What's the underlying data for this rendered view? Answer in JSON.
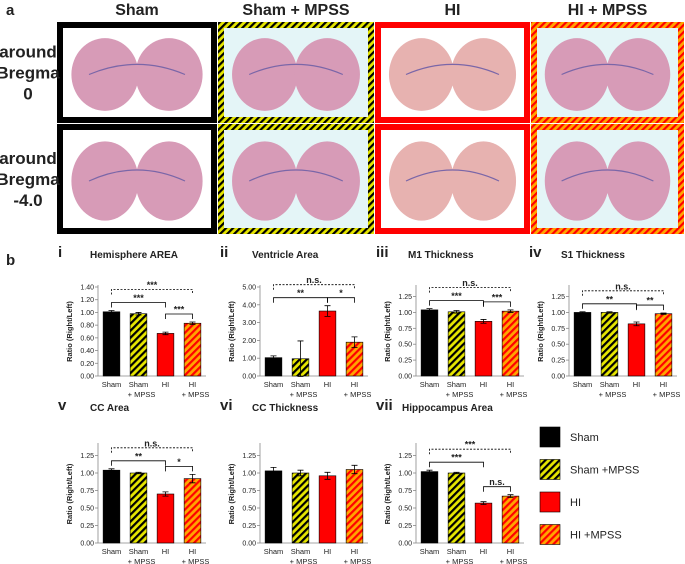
{
  "panel_a": {
    "label": "a",
    "columns": [
      "Sham",
      "Sham + MPSS",
      "HI",
      "HI + MPSS"
    ],
    "rows": [
      "around Bregma 0",
      "around Bregma -4.0"
    ]
  },
  "panel_b_label": "b",
  "bar_styles": [
    {
      "name": "Sham",
      "fill": "#000000"
    },
    {
      "name": "Sham +MPSS",
      "fill": "#e6e600",
      "stripe": "#000000"
    },
    {
      "name": "HI",
      "fill": "#ff0000"
    },
    {
      "name": "HI +MPSS",
      "fill": "#ffa500",
      "stripe": "#ff0000"
    }
  ],
  "chart_data": [
    {
      "type": "bar",
      "label": "i",
      "title": "Hemisphere AREA",
      "ylabel": "Ratio (Right/Left)",
      "categories": [
        "Sham",
        "Sham + MPSS",
        "HI",
        "HI + MPSS"
      ],
      "values": [
        1.01,
        0.98,
        0.67,
        0.83
      ],
      "errors": [
        0.02,
        0.02,
        0.02,
        0.02
      ],
      "ylim": [
        0,
        1.4
      ],
      "yticks": [
        {
          "value": 0,
          "label": "0.00"
        },
        {
          "value": 0.2,
          "label": "0.20"
        },
        {
          "value": 0.4,
          "label": "0.40"
        },
        {
          "value": 0.6,
          "label": "0.60"
        },
        {
          "value": 0.8,
          "label": "0.80"
        },
        {
          "value": 1,
          "label": "1.00"
        },
        {
          "value": 1.2,
          "label": "1.20"
        },
        {
          "value": 1.4,
          "label": "1.40"
        }
      ],
      "comparisons": [
        {
          "from": 0,
          "to": 2,
          "label": "***",
          "dashed": false
        },
        {
          "from": 2,
          "to": 3,
          "label": "***",
          "dashed": false
        },
        {
          "from": 0,
          "to": 3,
          "label": "***",
          "dashed": true
        }
      ]
    },
    {
      "type": "bar",
      "label": "ii",
      "title": "Ventricle Area",
      "ylabel": "Ratio (Right/Left)",
      "categories": [
        "Sham",
        "Sham + MPSS",
        "HI",
        "HI + MPSS"
      ],
      "values": [
        1.03,
        0.97,
        3.65,
        1.9
      ],
      "errors": [
        0.1,
        1.0,
        0.3,
        0.3
      ],
      "ylim": [
        0,
        5
      ],
      "yticks": [
        {
          "value": 0,
          "label": "0.00"
        },
        {
          "value": 1,
          "label": "1.00"
        },
        {
          "value": 2,
          "label": "2.00"
        },
        {
          "value": 3,
          "label": "3.00"
        },
        {
          "value": 4,
          "label": "4.00"
        },
        {
          "value": 5,
          "label": "5.00"
        }
      ],
      "comparisons": [
        {
          "from": 2,
          "to": 3,
          "label": "*",
          "dashed": false
        },
        {
          "from": 0,
          "to": 2,
          "label": "**",
          "dashed": false
        },
        {
          "from": 0,
          "to": 3,
          "label": "n.s.",
          "dashed": true
        }
      ]
    },
    {
      "type": "bar",
      "label": "iii",
      "title": "M1 Thickness",
      "ylabel": "Ratio (Right/Left)",
      "categories": [
        "Sham",
        "Sham + MPSS",
        "HI",
        "HI + MPSS"
      ],
      "values": [
        1.04,
        1.01,
        0.86,
        1.02
      ],
      "errors": [
        0.02,
        0.02,
        0.03,
        0.02
      ],
      "ylim": [
        0,
        1.4
      ],
      "yticks": [
        {
          "value": 0,
          "label": "0.00"
        },
        {
          "value": 0.25,
          "label": "0.25"
        },
        {
          "value": 0.5,
          "label": "0.50"
        },
        {
          "value": 0.75,
          "label": "0.75"
        },
        {
          "value": 1,
          "label": "1.00"
        },
        {
          "value": 1.25,
          "label": "1.25"
        }
      ],
      "comparisons": [
        {
          "from": 0,
          "to": 2,
          "label": "***",
          "dashed": false
        },
        {
          "from": 2,
          "to": 3,
          "label": "***",
          "dashed": false
        },
        {
          "from": 0,
          "to": 3,
          "label": "n.s.",
          "dashed": true
        }
      ]
    },
    {
      "type": "bar",
      "label": "iv",
      "title": "S1 Thickness",
      "ylabel": "Ratio (Right/Left)",
      "categories": [
        "Sham",
        "Sham + MPSS",
        "HI",
        "HI + MPSS"
      ],
      "values": [
        1.0,
        1.0,
        0.82,
        0.98
      ],
      "errors": [
        0.01,
        0.01,
        0.03,
        0.01
      ],
      "ylim": [
        0,
        1.4
      ],
      "yticks": [
        {
          "value": 0,
          "label": "0.00"
        },
        {
          "value": 0.25,
          "label": "0.25"
        },
        {
          "value": 0.5,
          "label": "0.50"
        },
        {
          "value": 0.75,
          "label": "0.75"
        },
        {
          "value": 1,
          "label": "1.00"
        },
        {
          "value": 1.25,
          "label": "1.25"
        }
      ],
      "comparisons": [
        {
          "from": 0,
          "to": 2,
          "label": "**",
          "dashed": false
        },
        {
          "from": 2,
          "to": 3,
          "label": "**",
          "dashed": false
        },
        {
          "from": 0,
          "to": 3,
          "label": "n.s.",
          "dashed": true
        }
      ]
    },
    {
      "type": "bar",
      "label": "v",
      "title": "CC Area",
      "ylabel": "Ratio (Right/Left)",
      "categories": [
        "Sham",
        "Sham + MPSS",
        "HI",
        "HI + MPSS"
      ],
      "values": [
        1.04,
        1.0,
        0.7,
        0.92
      ],
      "errors": [
        0.02,
        0.01,
        0.03,
        0.06
      ],
      "ylim": [
        0,
        1.4
      ],
      "yticks": [
        {
          "value": 0,
          "label": "0.00"
        },
        {
          "value": 0.25,
          "label": "0.25"
        },
        {
          "value": 0.5,
          "label": "0.50"
        },
        {
          "value": 0.75,
          "label": "0.75"
        },
        {
          "value": 1,
          "label": "1.00"
        },
        {
          "value": 1.25,
          "label": "1.25"
        }
      ],
      "comparisons": [
        {
          "from": 0,
          "to": 2,
          "label": "**",
          "dashed": false
        },
        {
          "from": 2,
          "to": 3,
          "label": "*",
          "dashed": false
        },
        {
          "from": 0,
          "to": 3,
          "label": "n.s.",
          "dashed": true
        }
      ]
    },
    {
      "type": "bar",
      "label": "vi",
      "title": "CC Thickness",
      "ylabel": "Ratio (Right/Left)",
      "categories": [
        "Sham",
        "Sham + MPSS",
        "HI",
        "HI + MPSS"
      ],
      "values": [
        1.03,
        1.0,
        0.96,
        1.05
      ],
      "errors": [
        0.05,
        0.04,
        0.05,
        0.06
      ],
      "ylim": [
        0,
        1.4
      ],
      "yticks": [
        {
          "value": 0,
          "label": "0.00"
        },
        {
          "value": 0.25,
          "label": "0.25"
        },
        {
          "value": 0.5,
          "label": "0.50"
        },
        {
          "value": 0.75,
          "label": "0.75"
        },
        {
          "value": 1,
          "label": "1.00"
        },
        {
          "value": 1.25,
          "label": "1.25"
        }
      ],
      "comparisons": []
    },
    {
      "type": "bar",
      "label": "vii",
      "title": "Hippocampus Area",
      "ylabel": "Ratio (Right/Left)",
      "categories": [
        "Sham",
        "Sham + MPSS",
        "HI",
        "HI + MPSS"
      ],
      "values": [
        1.02,
        1.0,
        0.57,
        0.67
      ],
      "errors": [
        0.02,
        0.01,
        0.02,
        0.02
      ],
      "ylim": [
        0,
        1.4
      ],
      "yticks": [
        {
          "value": 0,
          "label": "0.00"
        },
        {
          "value": 0.25,
          "label": "0.25"
        },
        {
          "value": 0.5,
          "label": "0.50"
        },
        {
          "value": 0.75,
          "label": "0.75"
        },
        {
          "value": 1,
          "label": "1.00"
        },
        {
          "value": 1.25,
          "label": "1.25"
        }
      ],
      "comparisons": [
        {
          "from": 0,
          "to": 2,
          "label": "***",
          "dashed": false
        },
        {
          "from": 2,
          "to": 3,
          "label": "n.s.",
          "dashed": false
        },
        {
          "from": 0,
          "to": 3,
          "label": "***",
          "dashed": true
        }
      ]
    }
  ]
}
